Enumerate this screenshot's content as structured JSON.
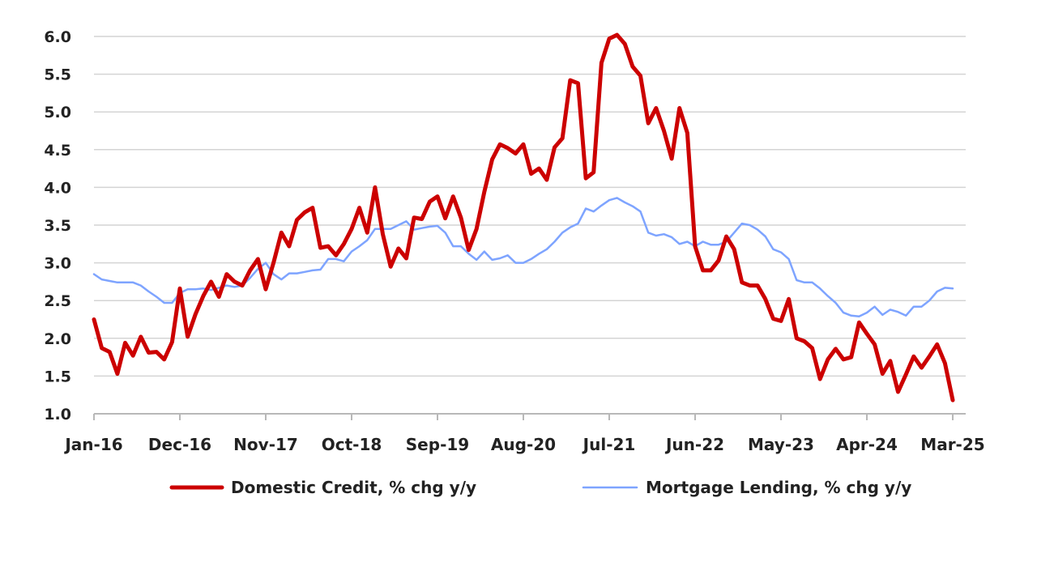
{
  "chart_data": {
    "type": "line",
    "title": "",
    "xlabel": "",
    "ylabel": "",
    "ylim": [
      1.0,
      6.0
    ],
    "y_ticks": [
      "1.0",
      "1.5",
      "2.0",
      "2.5",
      "3.0",
      "3.5",
      "4.0",
      "4.5",
      "5.0",
      "5.5",
      "6.0"
    ],
    "x_ticks": [
      "Jan-16",
      "Dec-16",
      "Nov-17",
      "Oct-18",
      "Sep-19",
      "Aug-20",
      "Jul-21",
      "Jun-22",
      "May-23",
      "Apr-24",
      "Mar-25"
    ],
    "x_range": [
      "Jan-16",
      "Mar-25"
    ],
    "grid": true,
    "legend_position": "bottom",
    "series": [
      {
        "name": "Domestic Credit, % chg y/y",
        "color": "#cc0000",
        "x": [
          "2016-01",
          "2016-02",
          "2016-03",
          "2016-04",
          "2016-05",
          "2016-06",
          "2016-07",
          "2016-08",
          "2016-09",
          "2016-10",
          "2016-11",
          "2016-12",
          "2017-01",
          "2017-02",
          "2017-03",
          "2017-04",
          "2017-05",
          "2017-06",
          "2017-07",
          "2017-08",
          "2017-09",
          "2017-10",
          "2017-11",
          "2017-12",
          "2018-01",
          "2018-02",
          "2018-03",
          "2018-04",
          "2018-05",
          "2018-06",
          "2018-07",
          "2018-08",
          "2018-09",
          "2018-10",
          "2018-11",
          "2018-12",
          "2019-01",
          "2019-02",
          "2019-03",
          "2019-04",
          "2019-05",
          "2019-06",
          "2019-07",
          "2019-08",
          "2019-09",
          "2019-10",
          "2019-11",
          "2019-12",
          "2020-01",
          "2020-02",
          "2020-03",
          "2020-04",
          "2020-05",
          "2020-06",
          "2020-07",
          "2020-08",
          "2020-09",
          "2020-10",
          "2020-11",
          "2020-12",
          "2021-01",
          "2021-02",
          "2021-03",
          "2021-04",
          "2021-05",
          "2021-06",
          "2021-07",
          "2021-08",
          "2021-09",
          "2021-10",
          "2021-11",
          "2021-12",
          "2022-01",
          "2022-02",
          "2022-03",
          "2022-04",
          "2022-05",
          "2022-06",
          "2022-07",
          "2022-08",
          "2022-09",
          "2022-10",
          "2022-11",
          "2022-12",
          "2023-01",
          "2023-02",
          "2023-03",
          "2023-04",
          "2023-05",
          "2023-06",
          "2023-07",
          "2023-08",
          "2023-09",
          "2023-10",
          "2023-11",
          "2023-12",
          "2024-01",
          "2024-02",
          "2024-03",
          "2024-04",
          "2024-05",
          "2024-06",
          "2024-07",
          "2024-08",
          "2024-09",
          "2024-10",
          "2024-11",
          "2024-12",
          "2025-01",
          "2025-02",
          "2025-03"
        ],
        "values": [
          2.25,
          1.87,
          1.82,
          1.53,
          1.94,
          1.77,
          2.02,
          1.81,
          1.82,
          1.72,
          1.95,
          2.66,
          2.02,
          2.32,
          2.56,
          2.75,
          2.55,
          2.85,
          2.75,
          2.7,
          2.9,
          3.05,
          2.65,
          3.0,
          3.4,
          3.22,
          3.57,
          3.67,
          3.73,
          3.2,
          3.22,
          3.1,
          3.25,
          3.45,
          3.73,
          3.4,
          4.0,
          3.38,
          2.95,
          3.19,
          3.06,
          3.6,
          3.58,
          3.81,
          3.88,
          3.59,
          3.88,
          3.6,
          3.17,
          3.45,
          3.94,
          4.37,
          4.57,
          4.52,
          4.45,
          4.57,
          4.18,
          4.25,
          4.1,
          4.53,
          4.65,
          5.42,
          5.38,
          4.12,
          4.2,
          5.65,
          5.97,
          6.02,
          5.9,
          5.6,
          5.48,
          4.85,
          5.05,
          4.75,
          4.38,
          5.05,
          4.72,
          3.22,
          2.9,
          2.9,
          3.03,
          3.35,
          3.18,
          2.74,
          2.7,
          2.7,
          2.52,
          2.26,
          2.23,
          2.52,
          2.0,
          1.96,
          1.87,
          1.46,
          1.72,
          1.86,
          1.72,
          1.75,
          2.21,
          2.06,
          1.92,
          1.53,
          1.7,
          1.29,
          1.52,
          1.76,
          1.61,
          1.76,
          1.92,
          1.67,
          1.18
        ]
      },
      {
        "name": "Mortgage Lending, % chg y/y",
        "color": "#7ea4ff",
        "x": [
          "2016-01",
          "2016-02",
          "2016-03",
          "2016-04",
          "2016-05",
          "2016-06",
          "2016-07",
          "2016-08",
          "2016-09",
          "2016-10",
          "2016-11",
          "2016-12",
          "2017-01",
          "2017-02",
          "2017-03",
          "2017-04",
          "2017-05",
          "2017-06",
          "2017-07",
          "2017-08",
          "2017-09",
          "2017-10",
          "2017-11",
          "2017-12",
          "2018-01",
          "2018-02",
          "2018-03",
          "2018-04",
          "2018-05",
          "2018-06",
          "2018-07",
          "2018-08",
          "2018-09",
          "2018-10",
          "2018-11",
          "2018-12",
          "2019-01",
          "2019-02",
          "2019-03",
          "2019-04",
          "2019-05",
          "2019-06",
          "2019-07",
          "2019-08",
          "2019-09",
          "2019-10",
          "2019-11",
          "2019-12",
          "2020-01",
          "2020-02",
          "2020-03",
          "2020-04",
          "2020-05",
          "2020-06",
          "2020-07",
          "2020-08",
          "2020-09",
          "2020-10",
          "2020-11",
          "2020-12",
          "2021-01",
          "2021-02",
          "2021-03",
          "2021-04",
          "2021-05",
          "2021-06",
          "2021-07",
          "2021-08",
          "2021-09",
          "2021-10",
          "2021-11",
          "2021-12",
          "2022-01",
          "2022-02",
          "2022-03",
          "2022-04",
          "2022-05",
          "2022-06",
          "2022-07",
          "2022-08",
          "2022-09",
          "2022-10",
          "2022-11",
          "2022-12",
          "2023-01",
          "2023-02",
          "2023-03",
          "2023-04",
          "2023-05",
          "2023-06",
          "2023-07",
          "2023-08",
          "2023-09",
          "2023-10",
          "2023-11",
          "2023-12",
          "2024-01",
          "2024-02",
          "2024-03",
          "2024-04",
          "2024-05",
          "2024-06",
          "2024-07",
          "2024-08",
          "2024-09",
          "2024-10",
          "2024-11",
          "2024-12",
          "2025-01",
          "2025-02",
          "2025-03"
        ],
        "values": [
          2.85,
          2.78,
          2.76,
          2.74,
          2.74,
          2.74,
          2.7,
          2.62,
          2.55,
          2.47,
          2.47,
          2.6,
          2.65,
          2.65,
          2.66,
          2.64,
          2.67,
          2.7,
          2.68,
          2.7,
          2.8,
          2.92,
          3.0,
          2.85,
          2.78,
          2.86,
          2.86,
          2.88,
          2.9,
          2.91,
          3.05,
          3.05,
          3.02,
          3.15,
          3.22,
          3.3,
          3.45,
          3.45,
          3.45,
          3.5,
          3.55,
          3.44,
          3.46,
          3.48,
          3.49,
          3.4,
          3.22,
          3.22,
          3.12,
          3.04,
          3.15,
          3.04,
          3.06,
          3.1,
          3.0,
          3.0,
          3.05,
          3.12,
          3.18,
          3.28,
          3.4,
          3.47,
          3.52,
          3.72,
          3.68,
          3.76,
          3.83,
          3.86,
          3.8,
          3.75,
          3.68,
          3.4,
          3.36,
          3.38,
          3.34,
          3.25,
          3.28,
          3.22,
          3.28,
          3.24,
          3.24,
          3.28,
          3.4,
          3.52,
          3.5,
          3.44,
          3.35,
          3.18,
          3.14,
          3.05,
          2.77,
          2.74,
          2.74,
          2.66,
          2.56,
          2.47,
          2.34,
          2.3,
          2.29,
          2.34,
          2.42,
          2.31,
          2.38,
          2.35,
          2.3,
          2.42,
          2.42,
          2.5,
          2.62,
          2.67,
          2.66
        ]
      }
    ]
  }
}
